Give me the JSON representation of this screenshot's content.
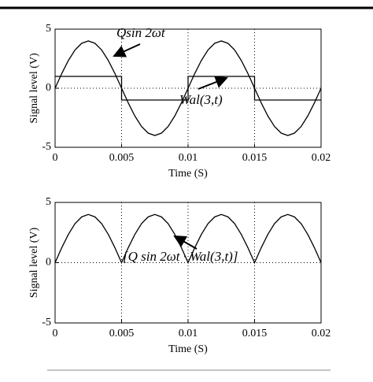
{
  "chart_data": [
    {
      "type": "line",
      "xlabel": "Time (S)",
      "ylabel": "Signal level (V)",
      "xlim": [
        0,
        0.02
      ],
      "ylim": [
        -5,
        5
      ],
      "xticks": [
        0,
        0.005,
        0.01,
        0.015,
        0.02
      ],
      "yticks": [
        -5,
        0,
        5
      ],
      "grid": true,
      "x": [
        0,
        0.0005,
        0.001,
        0.0015,
        0.002,
        0.0025,
        0.003,
        0.0035,
        0.004,
        0.0045,
        0.005,
        0.0055,
        0.006,
        0.0065,
        0.007,
        0.0075,
        0.008,
        0.0085,
        0.009,
        0.0095,
        0.01,
        0.0105,
        0.011,
        0.0115,
        0.012,
        0.0125,
        0.013,
        0.0135,
        0.014,
        0.0145,
        0.015,
        0.0155,
        0.016,
        0.0165,
        0.017,
        0.0175,
        0.018,
        0.0185,
        0.019,
        0.0195,
        0.02
      ],
      "annotations": [
        "Qsin 2ωt",
        "Wal(3,t)"
      ],
      "series": [
        {
          "color": "#000000",
          "values": [
            0,
            1.24,
            2.35,
            3.24,
            3.8,
            4,
            3.8,
            3.24,
            2.35,
            1.24,
            0,
            -1.24,
            -2.35,
            -3.24,
            -3.8,
            -4,
            -3.8,
            -3.24,
            -2.35,
            -1.24,
            0,
            1.24,
            2.35,
            3.24,
            3.8,
            4,
            3.8,
            3.24,
            2.35,
            1.24,
            0,
            -1.24,
            -2.35,
            -3.24,
            -3.8,
            -4,
            -3.8,
            -3.24,
            -2.35,
            -1.24,
            0
          ]
        },
        {
          "color": "#000000",
          "x": [
            0,
            0.005,
            0.005,
            0.01,
            0.01,
            0.015,
            0.015,
            0.02
          ],
          "values": [
            1,
            1,
            -1,
            -1,
            1,
            1,
            -1,
            -1
          ]
        }
      ]
    },
    {
      "type": "line",
      "xlabel": "Time (S)",
      "ylabel": "Signal level (V)",
      "xlim": [
        0,
        0.02
      ],
      "ylim": [
        -5,
        5
      ],
      "xticks": [
        0,
        0.005,
        0.01,
        0.015,
        0.02
      ],
      "yticks": [
        -5,
        0,
        5
      ],
      "grid": true,
      "x": [
        0,
        0.0005,
        0.001,
        0.0015,
        0.002,
        0.0025,
        0.003,
        0.0035,
        0.004,
        0.0045,
        0.005,
        0.0055,
        0.006,
        0.0065,
        0.007,
        0.0075,
        0.008,
        0.0085,
        0.009,
        0.0095,
        0.01,
        0.0105,
        0.011,
        0.0115,
        0.012,
        0.0125,
        0.013,
        0.0135,
        0.014,
        0.0145,
        0.015,
        0.0155,
        0.016,
        0.0165,
        0.017,
        0.0175,
        0.018,
        0.0185,
        0.019,
        0.0195,
        0.02
      ],
      "annotations": [
        "[Q sin 2ωt · Wal(3,t)]"
      ],
      "series": [
        {
          "color": "#000000",
          "values": [
            0,
            1.24,
            2.35,
            3.24,
            3.8,
            4,
            3.8,
            3.24,
            2.35,
            1.24,
            0,
            1.24,
            2.35,
            3.24,
            3.8,
            4,
            3.8,
            3.24,
            2.35,
            1.24,
            0,
            1.24,
            2.35,
            3.24,
            3.8,
            4,
            3.8,
            3.24,
            2.35,
            1.24,
            0,
            1.24,
            2.35,
            3.24,
            3.8,
            4,
            3.8,
            3.24,
            2.35,
            1.24,
            0
          ]
        }
      ]
    }
  ]
}
